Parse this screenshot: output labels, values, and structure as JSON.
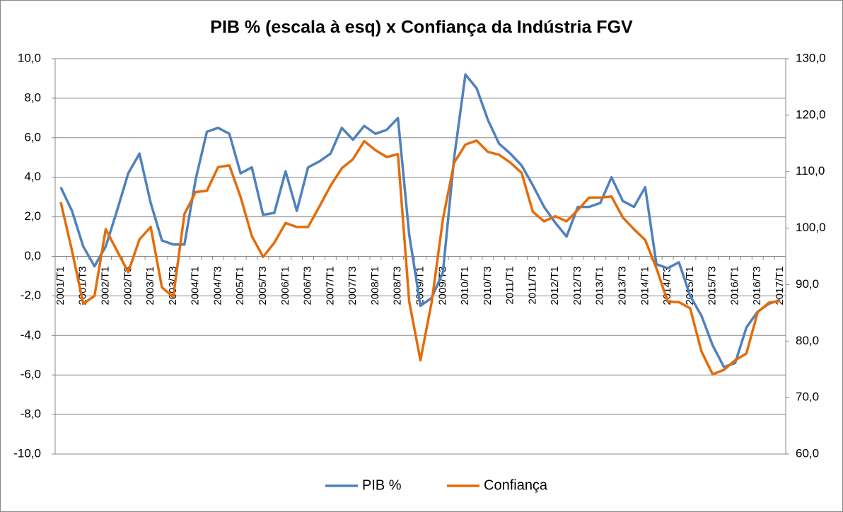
{
  "chart_data": {
    "type": "line",
    "title": "PIB % (escala à esq) x Confiança da Indústria FGV",
    "categories": [
      "2001/T1",
      null,
      "2001/T3",
      null,
      "2002/T1",
      null,
      "2002/T3",
      null,
      "2003/T1",
      null,
      "2003/T3",
      null,
      "2004/T1",
      null,
      "2004/T3",
      null,
      "2005/T1",
      null,
      "2005/T3",
      null,
      "2006/T1",
      null,
      "2006/T3",
      null,
      "2007/T1",
      null,
      "2007/T3",
      null,
      "2008/T1",
      null,
      "2008/T3",
      null,
      "2009/T1",
      null,
      "2009/T3",
      null,
      "2010/T1",
      null,
      "2010/T3",
      null,
      "2011/T1",
      null,
      "2011/T3",
      null,
      "2012/T1",
      null,
      "2012/T3",
      null,
      "2013/T1",
      null,
      "2013/T3",
      null,
      "2014/T1",
      null,
      "2014/T3",
      null,
      "2015/T1",
      null,
      "2015/T3",
      null,
      "2016/T1",
      null,
      "2016/T3",
      null,
      "2017/T1"
    ],
    "series": [
      {
        "name": "PIB %",
        "color": "#4f81bd",
        "values": [
          3.5,
          2.3,
          0.5,
          -0.5,
          0.5,
          2.3,
          4.2,
          5.2,
          2.7,
          0.8,
          0.6,
          0.6,
          3.9,
          6.3,
          6.5,
          6.2,
          4.2,
          4.5,
          2.1,
          2.2,
          4.3,
          2.3,
          4.5,
          4.8,
          5.2,
          6.5,
          5.9,
          6.6,
          6.2,
          6.4,
          7.0,
          1.1,
          -2.5,
          -2.1,
          -0.8,
          5.0,
          9.2,
          8.5,
          6.9,
          5.7,
          5.2,
          4.6,
          3.6,
          2.5,
          1.7,
          1.0,
          2.5,
          2.5,
          2.7,
          4.0,
          2.8,
          2.5,
          3.5,
          -0.4,
          -0.6,
          -0.3,
          -2.0,
          -3.0,
          -4.5,
          -5.6,
          -5.4,
          -3.6,
          -2.8,
          -2.4,
          -2.2
        ]
      },
      {
        "name": "Confiança",
        "color": "#e46c0a",
        "axis": "y2",
        "values": [
          104.6,
          96.0,
          86.6,
          88.0,
          99.8,
          96.0,
          92.2,
          98.0,
          100.2,
          89.5,
          87.8,
          102.5,
          106.4,
          106.6,
          110.8,
          111.1,
          105.5,
          98.6,
          94.9,
          97.4,
          100.9,
          100.2,
          100.2,
          103.8,
          107.5,
          110.6,
          112.2,
          115.4,
          113.8,
          112.6,
          113.1,
          87.0,
          76.6,
          86.9,
          101.6,
          111.6,
          114.8,
          115.5,
          113.5,
          113.0,
          111.6,
          109.8,
          102.9,
          101.2,
          102.1,
          101.2,
          103.2,
          105.4,
          105.4,
          105.6,
          101.9,
          99.8,
          97.9,
          92.9,
          87.0,
          86.9,
          85.8,
          78.2,
          74.1,
          74.9,
          76.6,
          77.8,
          85.1,
          86.8,
          87.1
        ]
      }
    ],
    "ylim": [
      -10,
      10
    ],
    "yticks": [
      {
        "value": -10,
        "label": "-10,0"
      },
      {
        "value": -8,
        "label": "-8,0"
      },
      {
        "value": -6,
        "label": "-6,0"
      },
      {
        "value": -4,
        "label": "-4,0"
      },
      {
        "value": -2,
        "label": "-2,0"
      },
      {
        "value": 0,
        "label": "0,0"
      },
      {
        "value": 2,
        "label": "2,0"
      },
      {
        "value": 4,
        "label": "4,0"
      },
      {
        "value": 6,
        "label": "6,0"
      },
      {
        "value": 8,
        "label": "8,0"
      },
      {
        "value": 10,
        "label": "10,0"
      }
    ],
    "y2lim": [
      60,
      130
    ],
    "y2ticks": [
      {
        "value": 60,
        "label": "60,0"
      },
      {
        "value": 70,
        "label": "70,0"
      },
      {
        "value": 80,
        "label": "80,0"
      },
      {
        "value": 90,
        "label": "90,0"
      },
      {
        "value": 100,
        "label": "100,0"
      },
      {
        "value": 110,
        "label": "110,0"
      },
      {
        "value": 120,
        "label": "120,0"
      },
      {
        "value": 130,
        "label": "130,0"
      }
    ],
    "grid": true,
    "legend": "bottom"
  }
}
